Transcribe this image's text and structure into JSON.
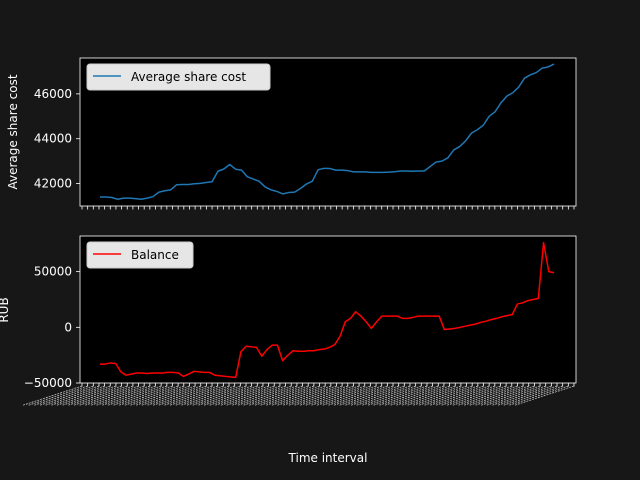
{
  "chart_data": [
    {
      "type": "line",
      "title": "",
      "xlabel": "",
      "ylabel": "Average share cost",
      "ylim": [
        41000,
        47600
      ],
      "yticks": [
        42000,
        44000,
        46000
      ],
      "ytick_labels": [
        "42000",
        "44000",
        "46000"
      ],
      "legend": "upper left",
      "grid": false,
      "series": [
        {
          "name": "Average share cost",
          "color": "#1f77b4",
          "values": [
            41400,
            41400,
            41380,
            41300,
            41350,
            41350,
            41330,
            41300,
            41350,
            41420,
            41620,
            41680,
            41720,
            41950,
            41960,
            41960,
            41990,
            42010,
            42050,
            42080,
            42550,
            42650,
            42850,
            42640,
            42600,
            42300,
            42200,
            42100,
            41850,
            41720,
            41650,
            41540,
            41600,
            41620,
            41780,
            41980,
            42100,
            42620,
            42680,
            42670,
            42600,
            42600,
            42580,
            42520,
            42520,
            42520,
            42500,
            42500,
            42500,
            42510,
            42530,
            42560,
            42560,
            42550,
            42560,
            42560,
            42760,
            42960,
            43000,
            43150,
            43500,
            43650,
            43900,
            44250,
            44400,
            44600,
            45000,
            45200,
            45600,
            45900,
            46050,
            46300,
            46700,
            46850,
            46950,
            47150,
            47200,
            47330
          ]
        }
      ]
    },
    {
      "type": "line",
      "title": "",
      "xlabel": "Time interval",
      "ylabel": "RUB",
      "ylim": [
        -50000,
        82000
      ],
      "yticks": [
        -50000,
        0,
        50000
      ],
      "ytick_labels": [
        "−50000",
        "0",
        "50000"
      ],
      "legend": "upper left",
      "grid": false,
      "series": [
        {
          "name": "Balance",
          "color": "#ff0000",
          "values": [
            -33000,
            -33000,
            -32000,
            -32500,
            -40000,
            -43000,
            -42000,
            -41000,
            -41000,
            -41500,
            -41000,
            -41000,
            -41000,
            -40500,
            -40500,
            -41000,
            -44000,
            -42000,
            -39500,
            -40000,
            -40500,
            -40500,
            -43000,
            -43500,
            -44000,
            -44500,
            -45000,
            -22000,
            -17000,
            -17500,
            -18000,
            -26000,
            -20000,
            -16000,
            -16000,
            -30000,
            -25000,
            -21000,
            -21500,
            -21500,
            -21000,
            -21000,
            -20000,
            -19500,
            -18000,
            -15500,
            -8000,
            5000,
            8000,
            14000,
            10000,
            5000,
            -1000,
            5000,
            10000,
            10000,
            10000,
            10000,
            8000,
            8000,
            9000,
            10000,
            10000,
            10000,
            10000,
            10000,
            -2000,
            -1500,
            -1000,
            0,
            1000,
            2000,
            3000,
            4500,
            5500,
            7000,
            8000,
            9500,
            10500,
            11500,
            21000,
            22000,
            24000,
            25000,
            26000,
            76000,
            50000,
            49000
          ]
        }
      ]
    }
  ]
}
